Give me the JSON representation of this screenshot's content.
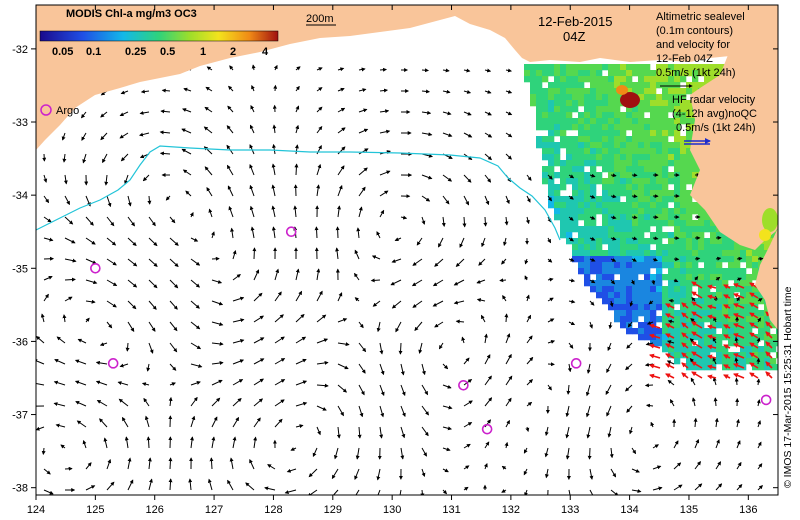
{
  "colorbar": {
    "title": "MODIS Chl-a mg/m3 OC3",
    "ticks": [
      "0.05",
      "0.1",
      "0.25",
      "0.5",
      "1",
      "2",
      "4"
    ]
  },
  "contour_label": "200m",
  "date": "12-Feb-2015",
  "time": "04Z",
  "altimetry_legend": {
    "lines": [
      "Altimetric sealevel",
      "(0.1m contours)",
      "and velocity for",
      "12-Feb 04Z"
    ],
    "scale": "0.5m/s (1kt 24h)"
  },
  "hf_legend": {
    "lines": [
      "HF radar velocity",
      "(4-12h avg)noQC"
    ],
    "scale": "0.5m/s (1kt 24h)"
  },
  "argo_label": "Argo",
  "credit": "© IMOS 17-Mar-2015 15:25:31 Hobart time",
  "colors": {
    "land": "#f9c59a",
    "contour_200m": "#22c4d8",
    "argo": "#cc22cc",
    "hf_vectors": "#ee1111",
    "hf_scale": "#1d2ccc"
  },
  "chart_data": {
    "type": "map",
    "x_axis": {
      "ticks": [
        124,
        125,
        126,
        127,
        128,
        129,
        130,
        131,
        132,
        133,
        134,
        135,
        136
      ],
      "range": [
        124,
        136.5
      ]
    },
    "y_axis": {
      "ticks": [
        -32,
        -33,
        -34,
        -35,
        -36,
        -37,
        -38
      ],
      "range": [
        -38.1,
        -31.4
      ]
    },
    "argo_floats": [
      {
        "lon": 125.0,
        "lat": -35.0
      },
      {
        "lon": 125.3,
        "lat": -36.3
      },
      {
        "lon": 128.3,
        "lat": -34.5
      },
      {
        "lon": 131.2,
        "lat": -36.6
      },
      {
        "lon": 131.6,
        "lat": -37.2
      },
      {
        "lon": 133.1,
        "lat": -36.3
      },
      {
        "lon": 136.3,
        "lat": -36.8
      }
    ]
  }
}
